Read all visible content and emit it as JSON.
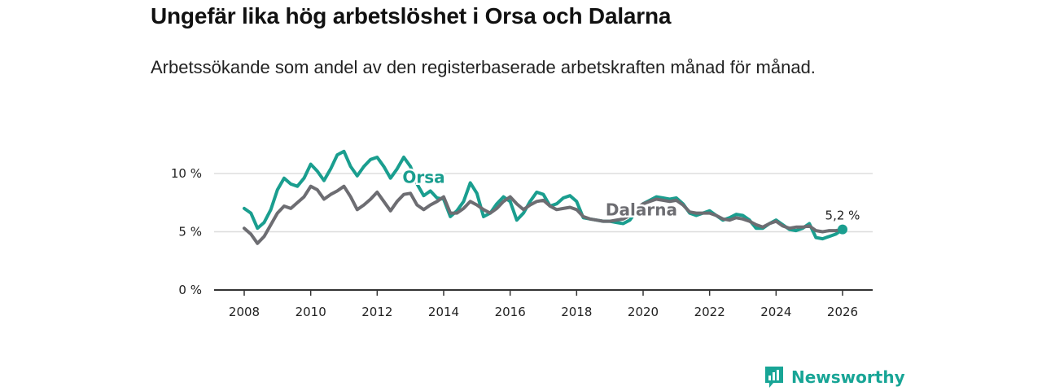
{
  "header": {
    "title": "Ungefär lika hög arbetslöshet i Orsa och Dalarna",
    "subtitle": "Arbetssökande som andel av den registerbaserade arbetskraften månad för månad."
  },
  "brand": {
    "name": "Newsworthy"
  },
  "colors": {
    "orsa": "#1a9e8f",
    "dalarna": "#6d6d72",
    "grid": "#dddddd",
    "axis": "#333333",
    "brand": "#18a596"
  },
  "chart_data": {
    "type": "line",
    "title": "Ungefär lika hög arbetslöshet i Orsa och Dalarna",
    "subtitle": "Arbetssökande som andel av den registerbaserade arbetskraften månad för månad.",
    "xlabel": "",
    "ylabel": "",
    "xlim": [
      2007.4,
      2026.8
    ],
    "ylim": [
      0,
      10
    ],
    "x_ticks": [
      2008,
      2010,
      2012,
      2014,
      2016,
      2018,
      2020,
      2022,
      2024,
      2026
    ],
    "y_ticks": [
      {
        "value": 0,
        "label": "0 %"
      },
      {
        "value": 5,
        "label": "5 %"
      },
      {
        "value": 10,
        "label": "10 %"
      }
    ],
    "end_label": "5,2 %",
    "series": [
      {
        "name": "Orsa",
        "label_at": [
          2013.4,
          9.2
        ],
        "x": [
          2008.0,
          2008.2,
          2008.4,
          2008.6,
          2008.8,
          2009.0,
          2009.2,
          2009.4,
          2009.6,
          2009.8,
          2010.0,
          2010.2,
          2010.4,
          2010.6,
          2010.8,
          2011.0,
          2011.2,
          2011.4,
          2011.6,
          2011.8,
          2012.0,
          2012.2,
          2012.4,
          2012.6,
          2012.8,
          2013.0,
          2013.2,
          2013.4,
          2013.6,
          2013.8,
          2014.0,
          2014.2,
          2014.4,
          2014.6,
          2014.8,
          2015.0,
          2015.2,
          2015.4,
          2015.6,
          2015.8,
          2016.0,
          2016.2,
          2016.4,
          2016.6,
          2016.8,
          2017.0,
          2017.2,
          2017.4,
          2017.6,
          2017.8,
          2018.0,
          2018.2,
          2018.4,
          2018.6,
          2018.8,
          2019.0,
          2019.2,
          2019.4,
          2019.6,
          2019.8,
          2020.0,
          2020.2,
          2020.4,
          2020.6,
          2020.8,
          2021.0,
          2021.2,
          2021.4,
          2021.6,
          2021.8,
          2022.0,
          2022.2,
          2022.4,
          2022.6,
          2022.8,
          2023.0,
          2023.2,
          2023.4,
          2023.6,
          2023.8,
          2024.0,
          2024.2,
          2024.4,
          2024.6,
          2024.8,
          2025.0,
          2025.2,
          2025.4,
          2025.6,
          2025.8,
          2026.0
        ],
        "values": [
          7.0,
          6.6,
          5.3,
          5.8,
          6.9,
          8.6,
          9.6,
          9.1,
          8.9,
          9.6,
          10.8,
          10.2,
          9.4,
          10.4,
          11.6,
          11.9,
          10.6,
          9.8,
          10.6,
          11.2,
          11.4,
          10.6,
          9.6,
          10.4,
          11.4,
          10.6,
          9.1,
          8.1,
          8.5,
          7.9,
          7.8,
          6.3,
          6.8,
          7.6,
          9.2,
          8.3,
          6.3,
          6.6,
          7.4,
          8.0,
          7.6,
          6.0,
          6.6,
          7.6,
          8.4,
          8.2,
          7.2,
          7.4,
          7.9,
          8.1,
          7.6,
          6.2,
          6.1,
          6.0,
          5.9,
          5.9,
          5.8,
          5.7,
          6.0,
          6.8,
          7.4,
          7.7,
          8.0,
          7.9,
          7.8,
          7.9,
          7.4,
          6.6,
          6.4,
          6.6,
          6.8,
          6.4,
          6.0,
          6.2,
          6.5,
          6.4,
          6.0,
          5.3,
          5.3,
          5.7,
          6.0,
          5.6,
          5.2,
          5.1,
          5.3,
          5.7,
          4.5,
          4.4,
          4.6,
          4.8,
          5.2
        ]
      },
      {
        "name": "Dalarna",
        "label_at": [
          2019.95,
          6.4
        ],
        "x": [
          2008.0,
          2008.2,
          2008.4,
          2008.6,
          2008.8,
          2009.0,
          2009.2,
          2009.4,
          2009.6,
          2009.8,
          2010.0,
          2010.2,
          2010.4,
          2010.6,
          2010.8,
          2011.0,
          2011.2,
          2011.4,
          2011.6,
          2011.8,
          2012.0,
          2012.2,
          2012.4,
          2012.6,
          2012.8,
          2013.0,
          2013.2,
          2013.4,
          2013.6,
          2013.8,
          2014.0,
          2014.2,
          2014.4,
          2014.6,
          2014.8,
          2015.0,
          2015.2,
          2015.4,
          2015.6,
          2015.8,
          2016.0,
          2016.2,
          2016.4,
          2016.6,
          2016.8,
          2017.0,
          2017.2,
          2017.4,
          2017.6,
          2017.8,
          2018.0,
          2018.2,
          2018.4,
          2018.6,
          2018.8,
          2019.0,
          2019.2,
          2019.4,
          2019.6,
          2019.8,
          2020.0,
          2020.2,
          2020.4,
          2020.6,
          2020.8,
          2021.0,
          2021.2,
          2021.4,
          2021.6,
          2021.8,
          2022.0,
          2022.2,
          2022.4,
          2022.6,
          2022.8,
          2023.0,
          2023.2,
          2023.4,
          2023.6,
          2023.8,
          2024.0,
          2024.2,
          2024.4,
          2024.6,
          2024.8,
          2025.0,
          2025.2,
          2025.4,
          2025.6,
          2025.8,
          2026.0
        ],
        "values": [
          5.3,
          4.8,
          4.0,
          4.6,
          5.6,
          6.6,
          7.2,
          7.0,
          7.5,
          8.0,
          8.9,
          8.6,
          7.8,
          8.2,
          8.5,
          8.9,
          8.0,
          6.9,
          7.3,
          7.8,
          8.4,
          7.6,
          6.8,
          7.6,
          8.2,
          8.3,
          7.3,
          6.9,
          7.3,
          7.6,
          8.0,
          6.6,
          6.6,
          7.0,
          7.6,
          7.3,
          6.9,
          6.6,
          7.0,
          7.6,
          8.0,
          7.4,
          6.9,
          7.3,
          7.6,
          7.7,
          7.2,
          6.9,
          7.0,
          7.1,
          6.9,
          6.3,
          6.1,
          6.0,
          5.9,
          5.9,
          6.0,
          6.1,
          6.4,
          7.0,
          7.4,
          7.6,
          7.8,
          7.7,
          7.6,
          7.7,
          7.3,
          6.7,
          6.6,
          6.6,
          6.6,
          6.4,
          6.1,
          6.0,
          6.2,
          6.1,
          5.9,
          5.6,
          5.4,
          5.7,
          5.9,
          5.5,
          5.3,
          5.4,
          5.4,
          5.5,
          5.1,
          5.0,
          5.1,
          5.1,
          5.2
        ]
      }
    ]
  }
}
